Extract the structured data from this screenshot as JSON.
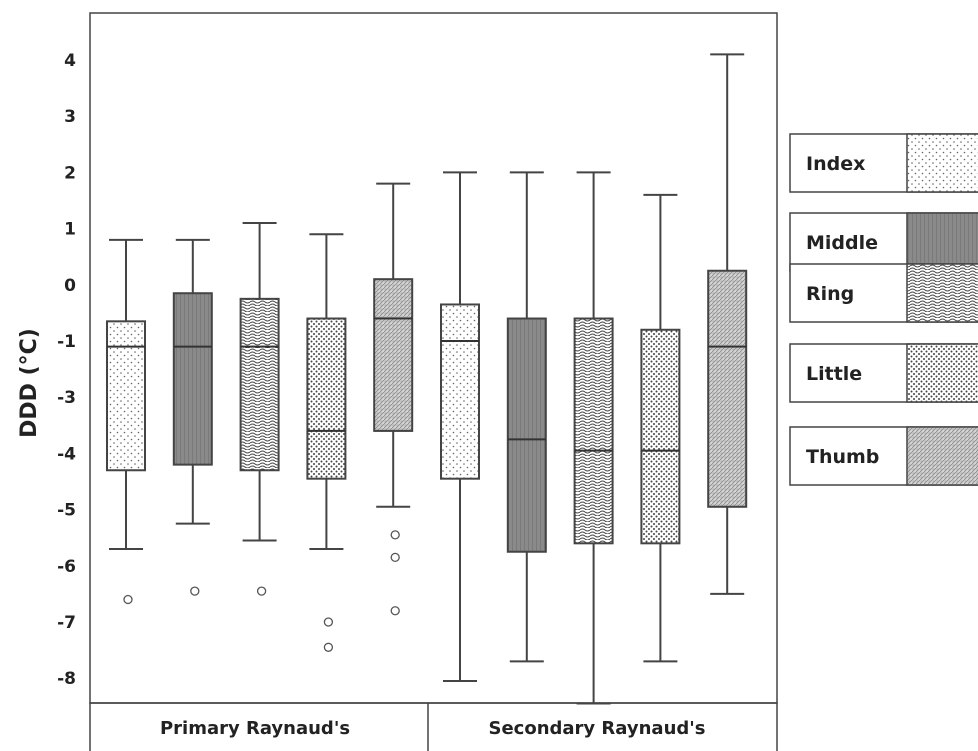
{
  "chart_data": {
    "type": "boxplot",
    "ylabel": "DDD (°C)",
    "y_ticks": [
      "4",
      "3",
      "2",
      "1",
      "0",
      "-1",
      "-3",
      "-4",
      "-5",
      "-6",
      "-7",
      "-8"
    ],
    "groups": [
      "Primary Raynaud's",
      "Secondary Raynaud's"
    ],
    "legend": [
      {
        "name": "Index",
        "pattern": "sparse-dots"
      },
      {
        "name": "Middle",
        "pattern": "dark-gray"
      },
      {
        "name": "Ring",
        "pattern": "wavy-lines"
      },
      {
        "name": "Little",
        "pattern": "dense-dots"
      },
      {
        "name": "Thumb",
        "pattern": "fine-texture"
      }
    ],
    "legend_position": "right",
    "boxes": [
      {
        "group": "Primary Raynaud's",
        "finger": "Index",
        "whisker_high": 0.8,
        "q3": -0.65,
        "median": -1.1,
        "q1": -3.3,
        "whisker_low": -4.7,
        "outliers": [
          -5.6
        ]
      },
      {
        "group": "Primary Raynaud's",
        "finger": "Middle",
        "whisker_high": 0.8,
        "q3": -0.15,
        "median": -1.1,
        "q1": -3.2,
        "whisker_low": -4.25,
        "outliers": [
          -5.45
        ]
      },
      {
        "group": "Primary Raynaud's",
        "finger": "Ring",
        "whisker_high": 1.1,
        "q3": -0.25,
        "median": -1.1,
        "q1": -3.3,
        "whisker_low": -4.55,
        "outliers": [
          -5.45
        ]
      },
      {
        "group": "Primary Raynaud's",
        "finger": "Little",
        "whisker_high": 0.9,
        "q3": -0.6,
        "median": -2.6,
        "q1": -3.45,
        "whisker_low": -4.7,
        "outliers": [
          -6.0,
          -6.45
        ]
      },
      {
        "group": "Primary Raynaud's",
        "finger": "Thumb",
        "whisker_high": 1.8,
        "q3": 0.1,
        "median": -0.6,
        "q1": -2.6,
        "whisker_low": -3.95,
        "outliers": [
          -4.45,
          -4.85,
          -5.8
        ]
      },
      {
        "group": "Secondary Raynaud's",
        "finger": "Index",
        "whisker_high": 2.0,
        "q3": -0.35,
        "median": -1.0,
        "q1": -3.45,
        "whisker_low": -7.05,
        "outliers": []
      },
      {
        "group": "Secondary Raynaud's",
        "finger": "Middle",
        "whisker_high": 2.0,
        "q3": -0.6,
        "median": -2.75,
        "q1": -4.75,
        "whisker_low": -6.7,
        "outliers": []
      },
      {
        "group": "Secondary Raynaud's",
        "finger": "Ring",
        "whisker_high": 2.0,
        "q3": -0.6,
        "median": -2.95,
        "q1": -4.6,
        "whisker_low": -7.45,
        "outliers": []
      },
      {
        "group": "Secondary Raynaud's",
        "finger": "Little",
        "whisker_high": 1.6,
        "q3": -0.8,
        "median": -2.95,
        "q1": -4.6,
        "whisker_low": -6.7,
        "outliers": []
      },
      {
        "group": "Secondary Raynaud's",
        "finger": "Thumb",
        "whisker_high": 4.1,
        "q3": 0.25,
        "median": -1.1,
        "q1": -3.95,
        "whisker_low": -5.5,
        "outliers": []
      }
    ]
  }
}
